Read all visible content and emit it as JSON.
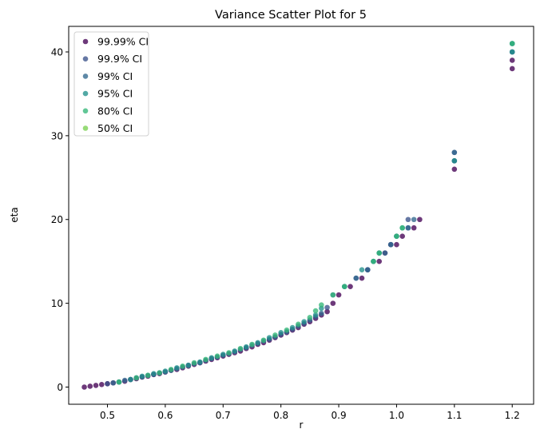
{
  "chart_data": {
    "type": "scatter",
    "title": "Variance Scatter Plot for 5",
    "xlabel": "r",
    "ylabel": "eta",
    "xlim": [
      0.433,
      1.237
    ],
    "ylim": [
      -2.05,
      43.05
    ],
    "xticks": [
      0.5,
      0.6,
      0.7,
      0.8,
      0.9,
      1.0,
      1.1,
      1.2
    ],
    "xtick_labels": [
      "0.5",
      "0.6",
      "0.7",
      "0.8",
      "0.9",
      "1.0",
      "1.1",
      "1.2"
    ],
    "yticks": [
      0,
      10,
      20,
      30,
      40
    ],
    "ytick_labels": [
      "0",
      "10",
      "20",
      "30",
      "40"
    ],
    "legend_position": "upper-left",
    "series": [
      {
        "name": "99.99% CI",
        "color": "#440154",
        "points": [
          [
            0.46,
            0.0
          ],
          [
            0.47,
            0.1
          ],
          [
            0.48,
            0.2
          ],
          [
            0.49,
            0.3
          ],
          [
            0.5,
            0.4
          ],
          [
            0.51,
            0.5
          ],
          [
            0.52,
            0.6
          ],
          [
            0.53,
            0.7
          ],
          [
            0.54,
            0.9
          ],
          [
            0.55,
            1.0
          ],
          [
            0.56,
            1.2
          ],
          [
            0.57,
            1.3
          ],
          [
            0.58,
            1.5
          ],
          [
            0.59,
            1.6
          ],
          [
            0.6,
            1.8
          ],
          [
            0.61,
            2.0
          ],
          [
            0.62,
            2.1
          ],
          [
            0.63,
            2.3
          ],
          [
            0.64,
            2.5
          ],
          [
            0.65,
            2.7
          ],
          [
            0.66,
            2.9
          ],
          [
            0.67,
            3.1
          ],
          [
            0.68,
            3.3
          ],
          [
            0.69,
            3.5
          ],
          [
            0.7,
            3.7
          ],
          [
            0.71,
            3.9
          ],
          [
            0.72,
            4.1
          ],
          [
            0.73,
            4.3
          ],
          [
            0.74,
            4.6
          ],
          [
            0.75,
            4.8
          ],
          [
            0.76,
            5.1
          ],
          [
            0.77,
            5.3
          ],
          [
            0.78,
            5.6
          ],
          [
            0.79,
            5.9
          ],
          [
            0.8,
            6.2
          ],
          [
            0.81,
            6.5
          ],
          [
            0.82,
            6.8
          ],
          [
            0.83,
            7.1
          ],
          [
            0.84,
            7.5
          ],
          [
            0.85,
            7.8
          ],
          [
            0.86,
            8.2
          ],
          [
            0.87,
            8.6
          ],
          [
            0.88,
            9.0
          ],
          [
            0.89,
            10.0
          ],
          [
            0.9,
            11.0
          ],
          [
            0.92,
            12.0
          ],
          [
            0.94,
            13.0
          ],
          [
            0.95,
            14.0
          ],
          [
            0.97,
            15.0
          ],
          [
            0.98,
            16.0
          ],
          [
            0.99,
            17.0
          ],
          [
            1.0,
            17.0
          ],
          [
            1.01,
            18.0
          ],
          [
            1.03,
            19.0
          ],
          [
            1.04,
            20.0
          ],
          [
            1.1,
            26.0
          ],
          [
            1.2,
            38.0
          ],
          [
            1.2,
            39.0
          ]
        ]
      },
      {
        "name": "99.9% CI",
        "color": "#3b528b",
        "points": [
          [
            0.5,
            0.4
          ],
          [
            0.52,
            0.6
          ],
          [
            0.54,
            0.9
          ],
          [
            0.56,
            1.2
          ],
          [
            0.58,
            1.5
          ],
          [
            0.6,
            1.8
          ],
          [
            0.62,
            2.2
          ],
          [
            0.64,
            2.6
          ],
          [
            0.66,
            2.9
          ],
          [
            0.68,
            3.4
          ],
          [
            0.7,
            3.8
          ],
          [
            0.72,
            4.2
          ],
          [
            0.74,
            4.7
          ],
          [
            0.76,
            5.2
          ],
          [
            0.78,
            5.7
          ],
          [
            0.8,
            6.3
          ],
          [
            0.82,
            6.9
          ],
          [
            0.84,
            7.6
          ],
          [
            0.86,
            8.4
          ],
          [
            0.88,
            9.5
          ],
          [
            0.91,
            12.0
          ],
          [
            0.93,
            13.0
          ],
          [
            0.95,
            14.0
          ],
          [
            0.96,
            15.0
          ],
          [
            0.97,
            16.0
          ],
          [
            0.99,
            17.0
          ],
          [
            1.0,
            18.0
          ],
          [
            1.02,
            19.0
          ],
          [
            1.02,
            20.0
          ],
          [
            1.1,
            27.0
          ],
          [
            1.1,
            28.0
          ],
          [
            1.2,
            40.0
          ]
        ]
      },
      {
        "name": "99% CI",
        "color": "#31688e",
        "points": [
          [
            0.51,
            0.5
          ],
          [
            0.53,
            0.8
          ],
          [
            0.55,
            1.1
          ],
          [
            0.57,
            1.4
          ],
          [
            0.59,
            1.7
          ],
          [
            0.61,
            2.0
          ],
          [
            0.63,
            2.4
          ],
          [
            0.65,
            2.8
          ],
          [
            0.67,
            3.2
          ],
          [
            0.69,
            3.6
          ],
          [
            0.71,
            4.0
          ],
          [
            0.73,
            4.5
          ],
          [
            0.75,
            5.0
          ],
          [
            0.77,
            5.5
          ],
          [
            0.79,
            6.0
          ],
          [
            0.81,
            6.6
          ],
          [
            0.83,
            7.3
          ],
          [
            0.85,
            8.0
          ],
          [
            0.87,
            8.8
          ],
          [
            0.89,
            11.0
          ],
          [
            0.93,
            13.0
          ],
          [
            0.95,
            14.0
          ],
          [
            0.98,
            16.0
          ],
          [
            0.99,
            17.0
          ],
          [
            1.02,
            19.0
          ],
          [
            1.03,
            20.0
          ],
          [
            1.1,
            27.0
          ],
          [
            1.1,
            28.0
          ],
          [
            1.2,
            40.0
          ],
          [
            1.2,
            41.0
          ]
        ]
      },
      {
        "name": "95% CI",
        "color": "#21918c",
        "points": [
          [
            0.52,
            0.6
          ],
          [
            0.54,
            0.9
          ],
          [
            0.56,
            1.3
          ],
          [
            0.58,
            1.6
          ],
          [
            0.6,
            1.9
          ],
          [
            0.62,
            2.3
          ],
          [
            0.64,
            2.6
          ],
          [
            0.66,
            3.0
          ],
          [
            0.68,
            3.5
          ],
          [
            0.7,
            3.9
          ],
          [
            0.72,
            4.3
          ],
          [
            0.74,
            4.8
          ],
          [
            0.76,
            5.3
          ],
          [
            0.78,
            5.9
          ],
          [
            0.8,
            6.5
          ],
          [
            0.82,
            7.1
          ],
          [
            0.84,
            7.8
          ],
          [
            0.86,
            8.6
          ],
          [
            0.87,
            9.4
          ],
          [
            0.91,
            12.0
          ],
          [
            0.94,
            14.0
          ],
          [
            0.96,
            15.0
          ],
          [
            0.97,
            16.0
          ],
          [
            1.0,
            18.0
          ],
          [
            1.01,
            19.0
          ],
          [
            1.1,
            27.0
          ],
          [
            1.2,
            40.0
          ],
          [
            1.2,
            41.0
          ]
        ]
      },
      {
        "name": "80% CI",
        "color": "#35b779",
        "points": [
          [
            0.52,
            0.6
          ],
          [
            0.55,
            1.1
          ],
          [
            0.57,
            1.4
          ],
          [
            0.59,
            1.7
          ],
          [
            0.61,
            2.1
          ],
          [
            0.63,
            2.5
          ],
          [
            0.65,
            2.9
          ],
          [
            0.67,
            3.3
          ],
          [
            0.69,
            3.7
          ],
          [
            0.71,
            4.1
          ],
          [
            0.73,
            4.6
          ],
          [
            0.75,
            5.1
          ],
          [
            0.77,
            5.6
          ],
          [
            0.79,
            6.2
          ],
          [
            0.81,
            6.8
          ],
          [
            0.83,
            7.5
          ],
          [
            0.85,
            8.3
          ],
          [
            0.86,
            9.1
          ],
          [
            0.87,
            9.8
          ],
          [
            0.89,
            11.0
          ],
          [
            0.91,
            12.0
          ],
          [
            0.96,
            15.0
          ],
          [
            0.97,
            16.0
          ],
          [
            1.0,
            18.0
          ],
          [
            1.01,
            19.0
          ],
          [
            1.2,
            41.0
          ]
        ]
      },
      {
        "name": "50% CI",
        "color": "#7ad151",
        "points": []
      }
    ]
  }
}
